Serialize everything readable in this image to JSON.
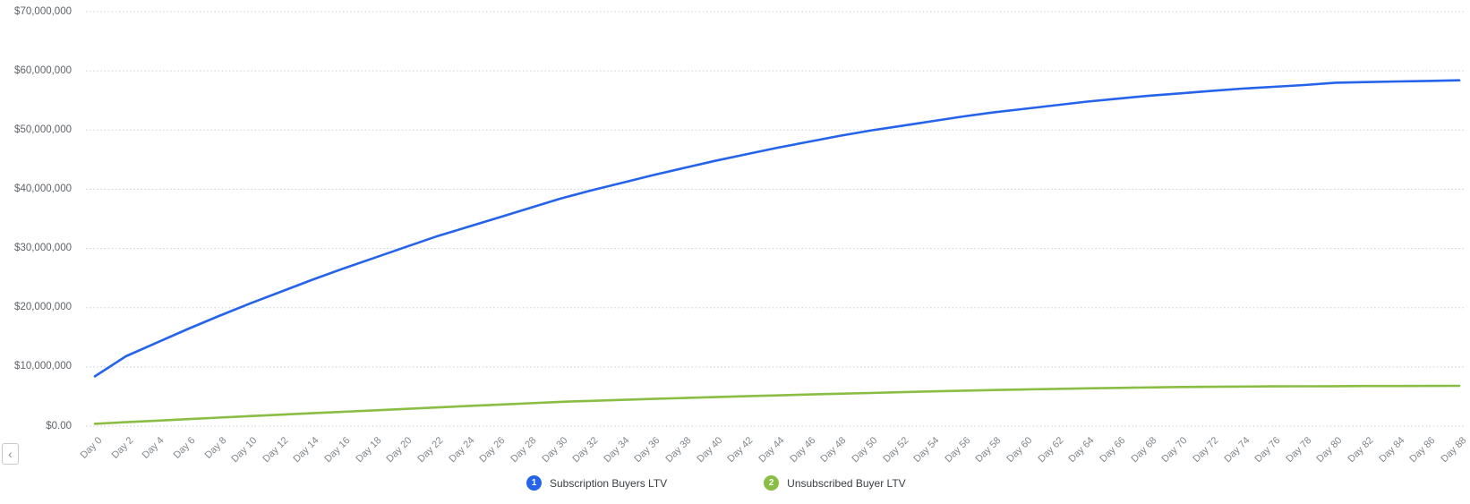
{
  "controls": {
    "scroll_left_icon": "‹"
  },
  "legend": {
    "items": [
      {
        "index": "1",
        "label": "Subscription Buyers LTV"
      },
      {
        "index": "2",
        "label": "Unsubscribed Buyer LTV"
      }
    ]
  },
  "chart_data": {
    "type": "line",
    "title": "",
    "xlabel": "",
    "ylabel": "",
    "ylim": [
      0,
      70000000
    ],
    "grid": "dotted horizontal",
    "legend_position": "bottom-center",
    "y_tick_labels": [
      "$70,000,000",
      "$60,000,000",
      "$50,000,000",
      "$40,000,000",
      "$30,000,000",
      "$20,000,000",
      "$10,000,000",
      "$0.00"
    ],
    "categories": [
      "Day 0",
      "Day 2",
      "Day 4",
      "Day 6",
      "Day 8",
      "Day 10",
      "Day 12",
      "Day 14",
      "Day 16",
      "Day 18",
      "Day 20",
      "Day 22",
      "Day 24",
      "Day 26",
      "Day 28",
      "Day 30",
      "Day 32",
      "Day 34",
      "Day 36",
      "Day 38",
      "Day 40",
      "Day 42",
      "Day 44",
      "Day 46",
      "Day 48",
      "Day 50",
      "Day 52",
      "Day 54",
      "Day 56",
      "Day 58",
      "Day 60",
      "Day 62",
      "Day 64",
      "Day 66",
      "Day 68",
      "Day 70",
      "Day 72",
      "Day 74",
      "Day 76",
      "Day 78",
      "Day 80",
      "Day 82",
      "Day 84",
      "Day 86",
      "Day 88"
    ],
    "series": [
      {
        "name": "Subscription Buyers LTV",
        "color": "#2563eb",
        "values": [
          8400000,
          11800000,
          14100000,
          16400000,
          18600000,
          20700000,
          22700000,
          24700000,
          26600000,
          28400000,
          30200000,
          32000000,
          33600000,
          35200000,
          36800000,
          38400000,
          39800000,
          41100000,
          42400000,
          43600000,
          44800000,
          45900000,
          47000000,
          48000000,
          49000000,
          49900000,
          50700000,
          51500000,
          52300000,
          53000000,
          53600000,
          54200000,
          54800000,
          55300000,
          55800000,
          56200000,
          56600000,
          57000000,
          57300000,
          57600000,
          58000000,
          58100000,
          58200000,
          58300000,
          58400000
        ]
      },
      {
        "name": "Unsubscribed Buyer LTV",
        "color": "#8abd43",
        "values": [
          400000,
          660000,
          920000,
          1180000,
          1440000,
          1700000,
          1940000,
          2180000,
          2420000,
          2660000,
          2900000,
          3140000,
          3380000,
          3620000,
          3860000,
          4100000,
          4270000,
          4430000,
          4590000,
          4750000,
          4900000,
          5050000,
          5190000,
          5330000,
          5470000,
          5600000,
          5730000,
          5860000,
          5980000,
          6090000,
          6200000,
          6290000,
          6380000,
          6460000,
          6530000,
          6600000,
          6640000,
          6680000,
          6710000,
          6730000,
          6750000,
          6770000,
          6780000,
          6790000,
          6800000
        ]
      }
    ]
  }
}
